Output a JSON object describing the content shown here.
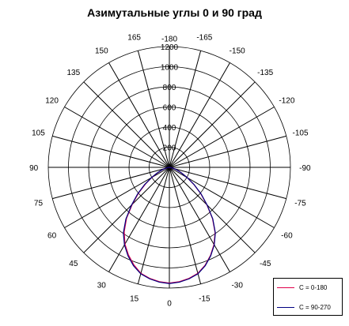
{
  "chart_data": {
    "type": "line",
    "polar": true,
    "title": "Азимутальные углы 0 и 90 град",
    "r_range": [
      0,
      1200
    ],
    "r_ticks": [
      0,
      200,
      400,
      600,
      800,
      1000,
      1200
    ],
    "r_tick_labels": [
      "0",
      "200",
      "400",
      "600",
      "800",
      "1000",
      "1200"
    ],
    "angle_tick_labels": [
      {
        "angle": 0,
        "label": "0"
      },
      {
        "angle": -15,
        "label": "-15"
      },
      {
        "angle": -30,
        "label": "-30"
      },
      {
        "angle": -45,
        "label": "-45"
      },
      {
        "angle": -60,
        "label": "-60"
      },
      {
        "angle": -75,
        "label": "-75"
      },
      {
        "angle": -90,
        "label": "-90"
      },
      {
        "angle": -105,
        "label": "-105"
      },
      {
        "angle": -120,
        "label": "-120"
      },
      {
        "angle": -135,
        "label": "-135"
      },
      {
        "angle": -150,
        "label": "-150"
      },
      {
        "angle": -165,
        "label": "-165"
      },
      {
        "angle": 180,
        "label": "-180"
      },
      {
        "angle": 165,
        "label": "165"
      },
      {
        "angle": 150,
        "label": "150"
      },
      {
        "angle": 135,
        "label": "135"
      },
      {
        "angle": 120,
        "label": "120"
      },
      {
        "angle": 105,
        "label": "105"
      },
      {
        "angle": 90,
        "label": "90"
      },
      {
        "angle": 75,
        "label": "75"
      },
      {
        "angle": 60,
        "label": "60"
      },
      {
        "angle": 45,
        "label": "45"
      },
      {
        "angle": 30,
        "label": "30"
      },
      {
        "angle": 15,
        "label": "15"
      }
    ],
    "legend_position": "bottom-right",
    "grid": true,
    "series": [
      {
        "name": "C = 0-180",
        "color": "#e0004a",
        "points": [
          [
            0,
            1150
          ],
          [
            5,
            1140
          ],
          [
            10,
            1120
          ],
          [
            15,
            1090
          ],
          [
            20,
            1030
          ],
          [
            25,
            960
          ],
          [
            30,
            880
          ],
          [
            35,
            780
          ],
          [
            40,
            660
          ],
          [
            45,
            520
          ],
          [
            50,
            400
          ],
          [
            55,
            290
          ],
          [
            60,
            200
          ],
          [
            65,
            130
          ],
          [
            70,
            80
          ],
          [
            75,
            45
          ],
          [
            80,
            20
          ],
          [
            85,
            8
          ],
          [
            90,
            0
          ],
          [
            -5,
            1140
          ],
          [
            -10,
            1120
          ],
          [
            -15,
            1090
          ],
          [
            -20,
            1035
          ],
          [
            -25,
            965
          ],
          [
            -30,
            885
          ],
          [
            -35,
            790
          ],
          [
            -40,
            665
          ],
          [
            -45,
            525
          ],
          [
            -50,
            405
          ],
          [
            -55,
            295
          ],
          [
            -60,
            205
          ],
          [
            -65,
            135
          ],
          [
            -70,
            82
          ],
          [
            -75,
            46
          ],
          [
            -80,
            21
          ],
          [
            -85,
            8
          ],
          [
            -90,
            0
          ]
        ]
      },
      {
        "name": "C = 90-270",
        "color": "#000080",
        "points": [
          [
            0,
            1155
          ],
          [
            5,
            1145
          ],
          [
            10,
            1125
          ],
          [
            15,
            1095
          ],
          [
            20,
            1040
          ],
          [
            25,
            970
          ],
          [
            30,
            890
          ],
          [
            35,
            795
          ],
          [
            40,
            670
          ],
          [
            45,
            530
          ],
          [
            50,
            410
          ],
          [
            55,
            300
          ],
          [
            60,
            205
          ],
          [
            65,
            135
          ],
          [
            70,
            82
          ],
          [
            75,
            46
          ],
          [
            80,
            21
          ],
          [
            85,
            8
          ],
          [
            90,
            0
          ],
          [
            -5,
            1145
          ],
          [
            -10,
            1125
          ],
          [
            -15,
            1095
          ],
          [
            -20,
            1040
          ],
          [
            -25,
            970
          ],
          [
            -30,
            890
          ],
          [
            -35,
            795
          ],
          [
            -40,
            670
          ],
          [
            -45,
            530
          ],
          [
            -50,
            410
          ],
          [
            -55,
            300
          ],
          [
            -60,
            205
          ],
          [
            -65,
            135
          ],
          [
            -70,
            82
          ],
          [
            -75,
            46
          ],
          [
            -80,
            21
          ],
          [
            -85,
            8
          ],
          [
            -90,
            0
          ]
        ]
      }
    ]
  }
}
